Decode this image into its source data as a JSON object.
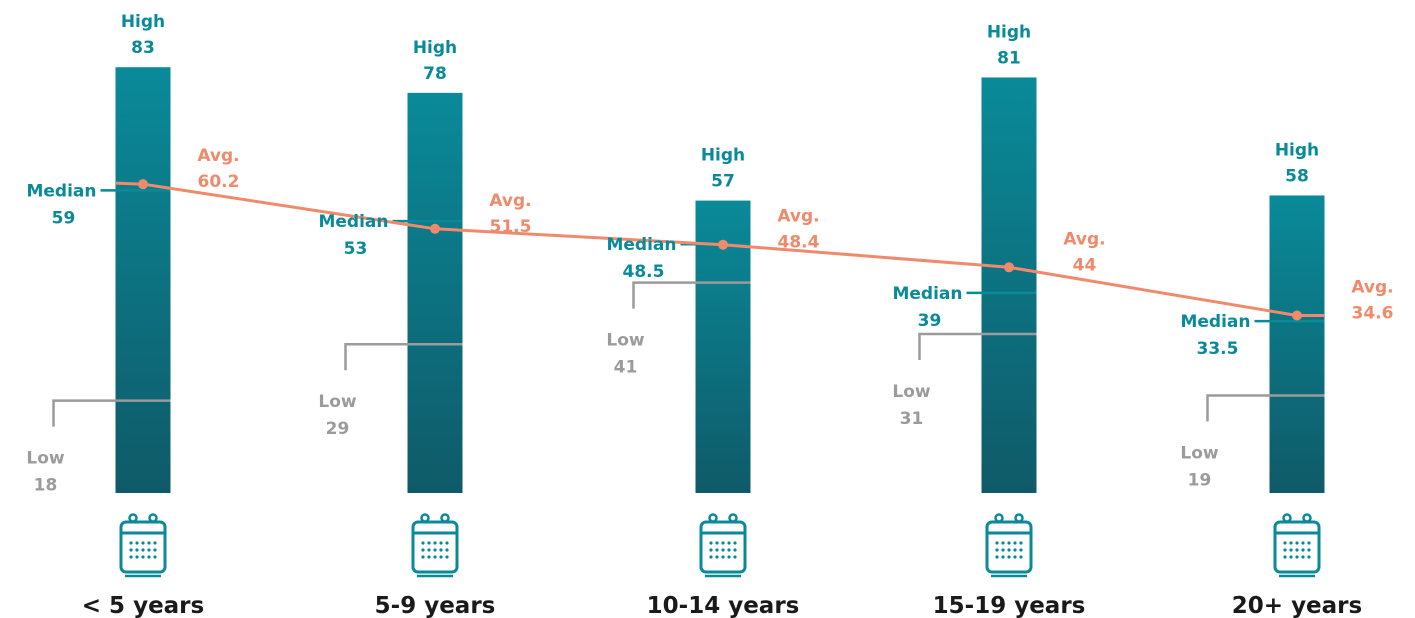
{
  "colors": {
    "teal": "#0a8a99",
    "teal_dark": "#0f5a68",
    "avg": "#f08a6c",
    "low": "#9b9b9b",
    "text_dark": "#1a1a1a"
  },
  "labels": {
    "high": "High",
    "median": "Median",
    "low": "Low",
    "avg": "Avg."
  },
  "icons": {
    "category_icon": "calendar-icon"
  },
  "chart_data": {
    "type": "bar",
    "categories": [
      "< 5 years",
      "5-9 years",
      "10-14 years",
      "15-19 years",
      "20+ years"
    ],
    "high": [
      83,
      78,
      57,
      81,
      58
    ],
    "median": [
      59,
      53,
      48.5,
      39,
      33.5
    ],
    "low": [
      18,
      29,
      41,
      31,
      19
    ],
    "avg": [
      60.2,
      51.5,
      48.4,
      44,
      34.6
    ],
    "title": "",
    "xlabel": "",
    "ylabel": ""
  }
}
